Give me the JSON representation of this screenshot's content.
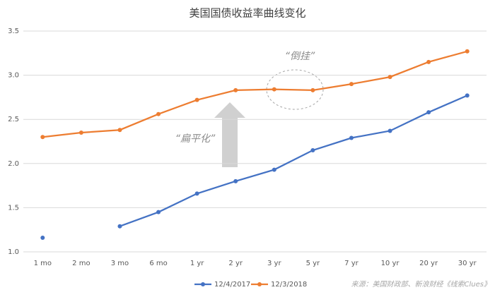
{
  "chart_data": {
    "type": "line",
    "title": "美国国债收益率曲线变化",
    "categories": [
      "1 mo",
      "2 mo",
      "3 mo",
      "6 mo",
      "1 yr",
      "2 yr",
      "3 yr",
      "5 yr",
      "7 yr",
      "10 yr",
      "20 yr",
      "30 yr"
    ],
    "series": [
      {
        "name": "12/4/2017",
        "color": "#4472c4",
        "values": [
          1.16,
          null,
          1.29,
          1.45,
          1.66,
          1.8,
          1.93,
          2.15,
          2.29,
          2.37,
          2.58,
          2.77
        ]
      },
      {
        "name": "12/3/2018",
        "color": "#ed7d31",
        "values": [
          2.3,
          2.35,
          2.38,
          2.56,
          2.72,
          2.83,
          2.84,
          2.83,
          2.9,
          2.98,
          3.15,
          3.27
        ]
      }
    ],
    "ylim": [
      1.0,
      3.5
    ],
    "yticks": [
      {
        "value": 1.0,
        "label": "1.0"
      },
      1.5,
      {
        "value": 2.0,
        "label": "2.0"
      },
      2.5,
      {
        "value": 3.0,
        "label": "3.0"
      },
      3.5
    ],
    "grid": true,
    "legend": "bottom",
    "annotations": [
      "“倒挂”",
      "“扁平化”"
    ],
    "source": "来源：美国财政部、新浪财经《线索Clues》"
  }
}
